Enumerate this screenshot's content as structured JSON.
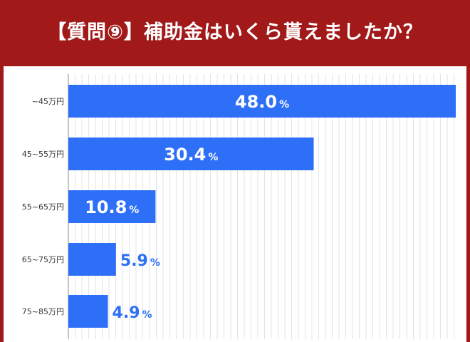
{
  "header": {
    "title": "【質問⑨】補助金はいくら貰えましたか？",
    "background": "#a11919"
  },
  "chart_data": {
    "type": "bar",
    "orientation": "horizontal",
    "categories": [
      "~45万円",
      "45~55万円",
      "55~65万円",
      "65~75万円",
      "75~85万円"
    ],
    "values": [
      48.0,
      30.4,
      10.8,
      5.9,
      4.9
    ],
    "value_labels": [
      "48.0",
      "30.4",
      "10.8",
      "5.9",
      "4.9"
    ],
    "unit": "%",
    "xlim": [
      0,
      48
    ],
    "grid": true,
    "bar_color": "#2e6ff7"
  }
}
